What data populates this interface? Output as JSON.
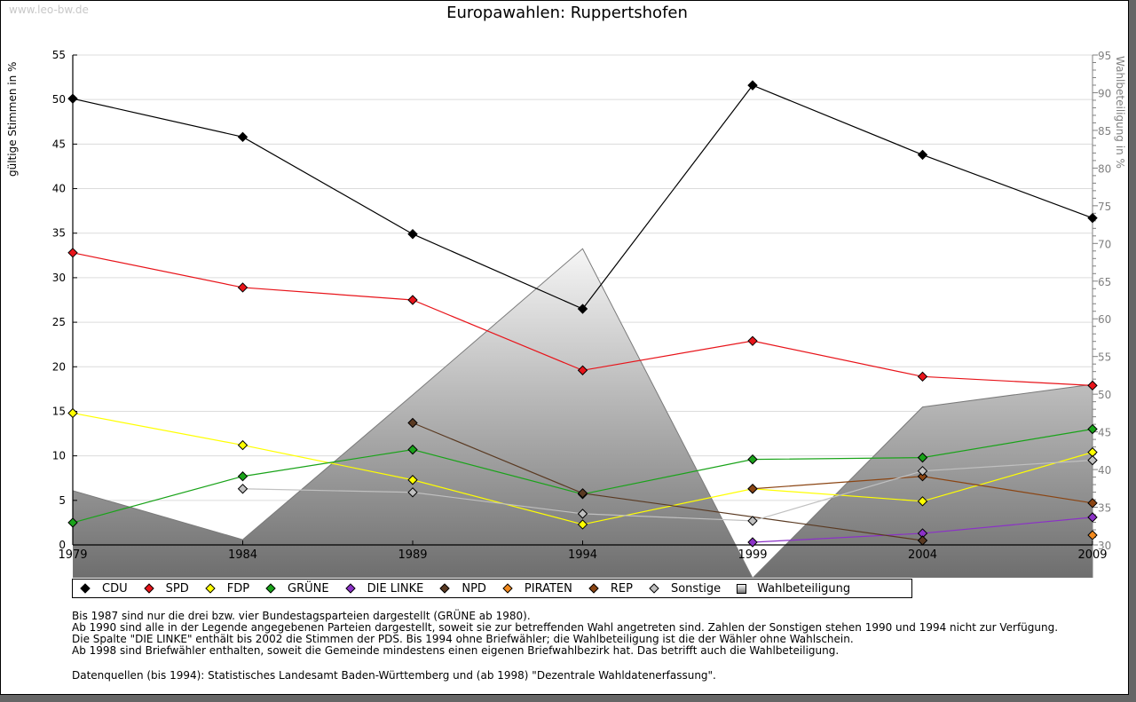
{
  "watermark": "www.leo-bw.de",
  "title": "Europawahlen: Ruppertshofen",
  "legend": [
    {
      "label": "CDU",
      "color": "#000000"
    },
    {
      "label": "SPD",
      "color": "#e8141a"
    },
    {
      "label": "FDP",
      "color": "#ffff00"
    },
    {
      "label": "GRÜNE",
      "color": "#19a319"
    },
    {
      "label": "DIE LINKE",
      "color": "#8b31c7"
    },
    {
      "label": "NPD",
      "color": "#5a3a22"
    },
    {
      "label": "PIRATEN",
      "color": "#f28a1e"
    },
    {
      "label": "REP",
      "color": "#8b4513"
    },
    {
      "label": "Sonstige",
      "color": "#c0c0c0"
    },
    {
      "label": "Wahlbeteiligung",
      "color": "#999999"
    }
  ],
  "notes": [
    "Bis 1987 sind nur die drei bzw. vier Bundestagsparteien dargestellt (GRÜNE ab 1980).",
    "Ab 1990 sind alle in der Legende angegebenen Parteien dargestellt, soweit sie zur betreffenden Wahl angetreten sind. Zahlen der Sonstigen stehen 1990 und 1994 nicht zur Verfügung.",
    "Die Spalte \"DIE LINKE\" enthält bis 2002 die Stimmen der PDS. Bis 1994 ohne Briefwähler; die Wahlbeteiligung ist die der Wähler ohne Wahlschein.",
    "Ab 1998 sind Briefwähler enthalten, soweit die Gemeinde mindestens einen eigenen Briefwahlbezirk hat. Das betrifft auch die Wahlbeteiligung."
  ],
  "source": "Datenquellen (bis 1994): Statistisches Landesamt Baden-Württemberg und (ab 1998) \"Dezentrale Wahldatenerfassung\".",
  "chart_data": {
    "type": "line",
    "title": "Europawahlen: Ruppertshofen",
    "xlabel": "",
    "ylabel": "gültige Stimmen in %",
    "y2label": "Wahlbeteiligung in %",
    "x": [
      "1979",
      "1984",
      "1989",
      "1994",
      "1999",
      "2004",
      "2009"
    ],
    "ylim": [
      0,
      55
    ],
    "y2lim": [
      30,
      95
    ],
    "yticks": [
      "0",
      "5",
      "10",
      "15",
      "20",
      "25",
      "30",
      "35",
      "40",
      "45",
      "50",
      "55"
    ],
    "y2ticks": [
      "30",
      "35",
      "40",
      "45",
      "50",
      "55",
      "60",
      "65",
      "70",
      "75",
      "80",
      "85",
      "90",
      "95"
    ],
    "grid": true,
    "legend_position": "bottom",
    "series": [
      {
        "name": "CDU",
        "color": "#000000",
        "values": [
          50.1,
          45.8,
          34.9,
          26.5,
          51.6,
          43.8,
          36.7
        ]
      },
      {
        "name": "SPD",
        "color": "#e8141a",
        "values": [
          32.8,
          28.9,
          27.5,
          19.6,
          22.9,
          18.9,
          17.9
        ]
      },
      {
        "name": "FDP",
        "color": "#ffff00",
        "values": [
          14.8,
          11.2,
          7.3,
          2.3,
          6.3,
          4.9,
          10.4
        ]
      },
      {
        "name": "GRÜNE",
        "color": "#19a319",
        "values": [
          2.5,
          7.7,
          10.7,
          5.7,
          9.6,
          9.8,
          13.0
        ]
      },
      {
        "name": "DIE LINKE",
        "color": "#8b31c7",
        "values": [
          null,
          null,
          null,
          null,
          0.3,
          1.3,
          3.1
        ]
      },
      {
        "name": "NPD",
        "color": "#5a3a22",
        "values": [
          null,
          null,
          13.7,
          5.8,
          null,
          0.5,
          null
        ]
      },
      {
        "name": "PIRATEN",
        "color": "#f28a1e",
        "values": [
          null,
          null,
          null,
          null,
          null,
          null,
          1.1
        ]
      },
      {
        "name": "REP",
        "color": "#8b4513",
        "values": [
          null,
          null,
          null,
          null,
          6.3,
          7.7,
          4.7
        ]
      },
      {
        "name": "Sonstige",
        "color": "#c0c0c0",
        "values": [
          null,
          6.3,
          5.9,
          3.5,
          2.7,
          8.3,
          9.5
        ]
      }
    ],
    "turnout": {
      "name": "Wahlbeteiligung",
      "axis": "right",
      "type": "area",
      "values": [
        37.2,
        30.7,
        49.9,
        69.3,
        25.6,
        48.3,
        51.3
      ]
    }
  }
}
